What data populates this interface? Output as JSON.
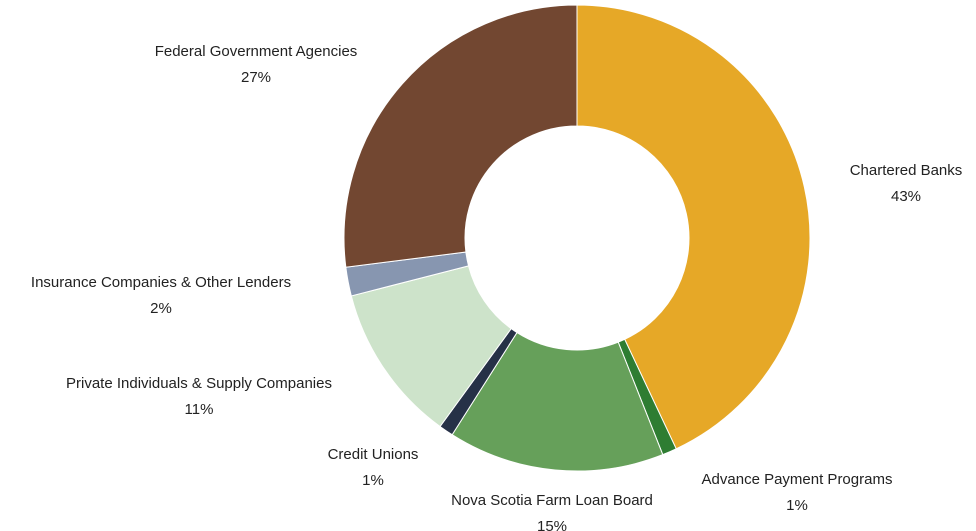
{
  "chart_data": {
    "type": "pie",
    "variant": "donut",
    "title": "",
    "legend": "none",
    "slices": [
      {
        "label": "Chartered Banks",
        "value": 43,
        "value_label": "43%",
        "color": "#E6A827"
      },
      {
        "label": "Advance Payment Programs",
        "value": 1,
        "value_label": "1%",
        "color": "#2E7D32"
      },
      {
        "label": "Nova Scotia Farm Loan Board",
        "value": 15,
        "value_label": "15%",
        "color": "#66A05A"
      },
      {
        "label": "Credit Unions",
        "value": 1,
        "value_label": "1%",
        "color": "#263147"
      },
      {
        "label": "Private Individuals & Supply Companies",
        "value": 11,
        "value_label": "11%",
        "color": "#CDE3CA"
      },
      {
        "label": "Insurance Companies & Other Lenders",
        "value": 2,
        "value_label": "2%",
        "color": "#8796B0"
      },
      {
        "label": "Federal Government Agencies",
        "value": 27,
        "value_label": "27%",
        "color": "#724731"
      }
    ]
  }
}
